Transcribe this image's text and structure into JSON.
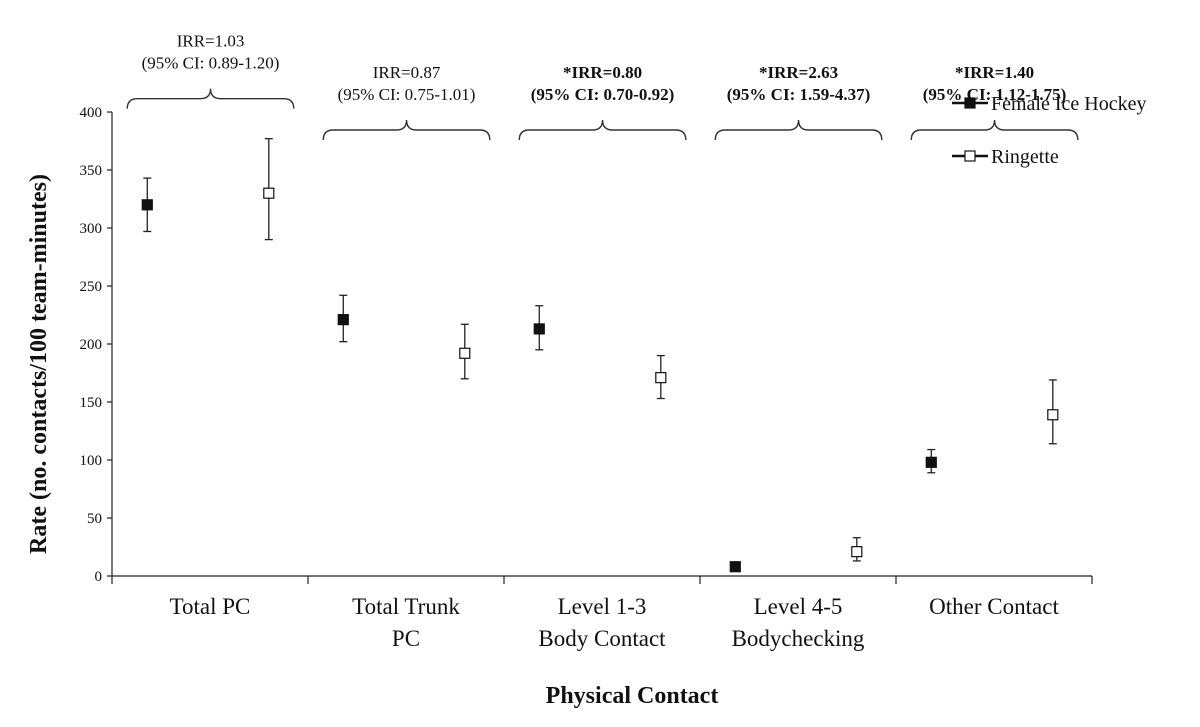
{
  "chart_data": {
    "type": "scatter",
    "title": "",
    "xlabel": "Physical Contact",
    "ylabel": "Rate (no. contacts/100 team-minutes)",
    "ylim": [
      0,
      400
    ],
    "yticks": [
      0,
      50,
      100,
      150,
      200,
      250,
      300,
      350,
      400
    ],
    "categories": [
      {
        "lines": [
          "Total PC"
        ]
      },
      {
        "lines": [
          "Total Trunk",
          "PC"
        ]
      },
      {
        "lines": [
          "Level 1-3",
          "Body Contact"
        ]
      },
      {
        "lines": [
          "Level 4-5",
          "Bodychecking"
        ]
      },
      {
        "lines": [
          "Other Contact"
        ]
      }
    ],
    "series": [
      {
        "name": "Female Ice Hockey",
        "marker": "filled-square",
        "values": [
          320,
          221,
          213,
          8,
          98
        ],
        "ci_low": [
          297,
          202,
          195,
          6,
          89
        ],
        "ci_high": [
          343,
          242,
          233,
          10,
          109
        ]
      },
      {
        "name": "Ringette",
        "marker": "open-square",
        "values": [
          330,
          192,
          171,
          21,
          139
        ],
        "ci_low": [
          290,
          170,
          153,
          13,
          114
        ],
        "ci_high": [
          377,
          217,
          190,
          33,
          169
        ]
      }
    ],
    "annotations": [
      {
        "line1": "IRR=1.03",
        "line2": "(95% CI: 0.89-1.20)",
        "bold": false
      },
      {
        "line1": "IRR=0.87",
        "line2": "(95% CI: 0.75-1.01)",
        "bold": false
      },
      {
        "line1": "*IRR=0.80",
        "line2": "(95% CI: 0.70-0.92)",
        "bold": true
      },
      {
        "line1": "*IRR=2.63",
        "line2": "(95% CI: 1.59-4.37)",
        "bold": true
      },
      {
        "line1": "*IRR=1.40",
        "line2": "(95% CI: 1.12-1.75)",
        "bold": true
      }
    ],
    "legend_position": "top-right",
    "grid": false
  }
}
